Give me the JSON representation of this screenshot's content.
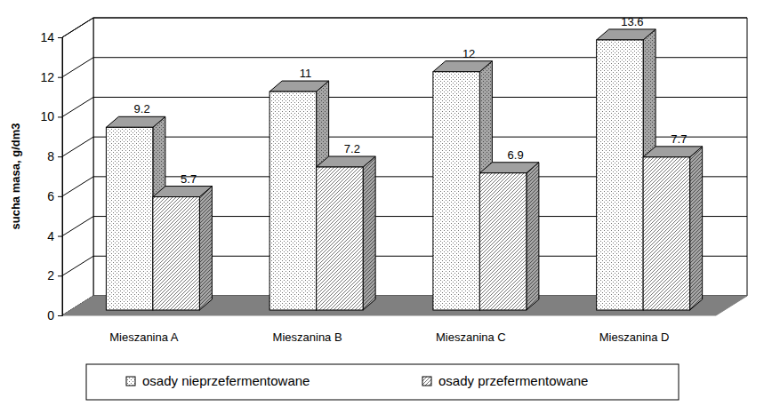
{
  "chart_data": {
    "type": "bar",
    "y_label": "sucha masa, g/dm3",
    "categories": [
      "Mieszanina A",
      "Mieszanina B",
      "Mieszanina C",
      "Mieszanina D"
    ],
    "series": [
      {
        "name": "osady nieprzefermentowane",
        "color": "#ffffff",
        "values": [
          9.2,
          11,
          12,
          13.6
        ]
      },
      {
        "name": "osady przefermentowane",
        "color": "#ffffff",
        "values": [
          5.7,
          7.2,
          6.9,
          7.7
        ]
      }
    ],
    "ylim": [
      0,
      14
    ],
    "yticks": [
      0,
      2,
      4,
      6,
      8,
      10,
      12,
      14
    ],
    "grid": true,
    "data_labels": true,
    "legend": "bottom"
  }
}
